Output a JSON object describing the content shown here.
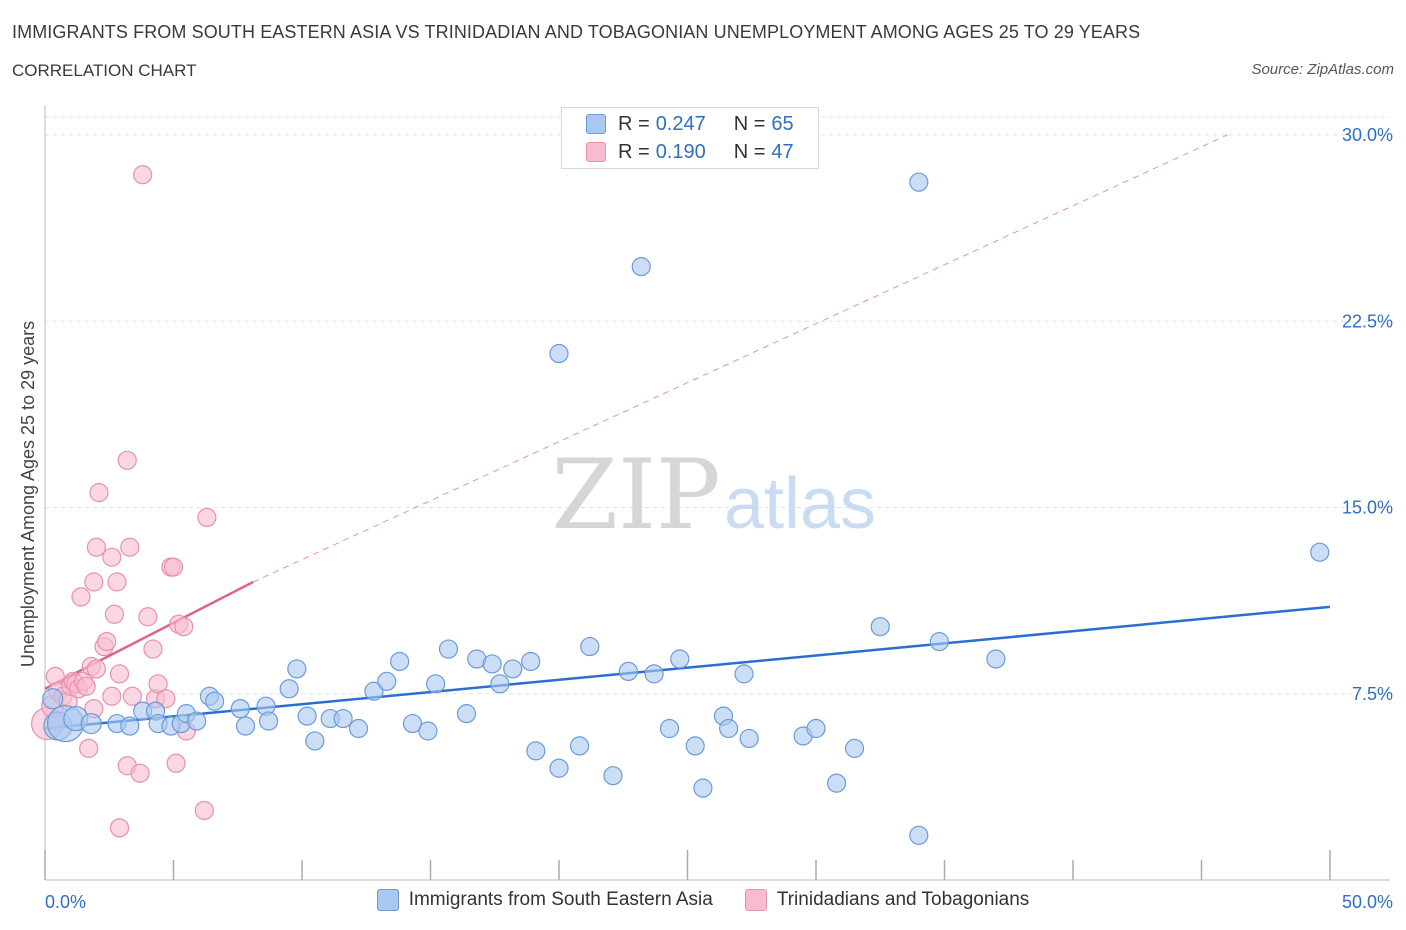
{
  "header": {
    "title": "IMMIGRANTS FROM SOUTH EASTERN ASIA VS TRINIDADIAN AND TOBAGONIAN UNEMPLOYMENT AMONG AGES 25 TO 29 YEARS",
    "subtitle": "CORRELATION CHART",
    "source": "Source: ZipAtlas.com"
  },
  "watermark": {
    "zip": "ZIP",
    "atlas": "atlas"
  },
  "legend_top": {
    "rows": [
      {
        "r_label": "R =",
        "r_value": "0.247",
        "n_label": "N =",
        "n_value": "65"
      },
      {
        "r_label": "R =",
        "r_value": "0.190",
        "n_label": "N =",
        "n_value": "47"
      }
    ]
  },
  "legend_bottom": {
    "items": [
      {
        "label": "Immigrants from South Eastern Asia"
      },
      {
        "label": "Trinidadians and Tobagonians"
      }
    ]
  },
  "colors": {
    "blue_fill": "#a8c8f0",
    "blue_stroke": "#6a9bd8",
    "blue_line": "#2a6fd0",
    "pink_fill": "#f8bcd0",
    "pink_stroke": "#e890b0",
    "pink_line": "#e0628e",
    "axis_label": "#2f6fc2",
    "grid": "#e2e2e2"
  },
  "chart_data": {
    "type": "scatter",
    "title": "IMMIGRANTS FROM SOUTH EASTERN ASIA VS TRINIDADIAN AND TOBAGONIAN UNEMPLOYMENT AMONG AGES 25 TO 29 YEARS",
    "xlabel": "",
    "ylabel": "Unemployment Among Ages 25 to 29 years",
    "xlim": [
      0,
      50
    ],
    "ylim": [
      0,
      30
    ],
    "x_tick_labels": [
      "0.0%",
      "50.0%"
    ],
    "y_ticks": [
      7.5,
      15.0,
      22.5,
      30.0
    ],
    "y_tick_labels": [
      "7.5%",
      "15.0%",
      "22.5%",
      "30.0%"
    ],
    "grid": true,
    "legend_position": "top-center",
    "series": [
      {
        "name": "Immigrants from South Eastern Asia",
        "R": 0.247,
        "N": 65,
        "trend": {
          "x": [
            0,
            50
          ],
          "y": [
            6.1,
            11.0
          ],
          "style": "solid"
        },
        "points": [
          [
            0.3,
            7.3,
            10
          ],
          [
            0.5,
            6.2,
            14
          ],
          [
            0.8,
            6.3,
            18
          ],
          [
            1.2,
            6.5,
            12
          ],
          [
            1.8,
            6.3,
            10
          ],
          [
            2.8,
            6.3,
            9
          ],
          [
            3.3,
            6.2,
            9
          ],
          [
            3.8,
            6.8,
            9
          ],
          [
            4.3,
            6.8,
            9
          ],
          [
            4.4,
            6.3,
            9
          ],
          [
            4.9,
            6.2,
            9
          ],
          [
            5.3,
            6.3,
            9
          ],
          [
            5.5,
            6.7,
            9
          ],
          [
            5.9,
            6.4,
            9
          ],
          [
            6.4,
            7.4,
            9
          ],
          [
            6.6,
            7.2,
            9
          ],
          [
            7.6,
            6.9,
            9
          ],
          [
            7.8,
            6.2,
            9
          ],
          [
            8.6,
            7.0,
            9
          ],
          [
            8.7,
            6.4,
            9
          ],
          [
            9.5,
            7.7,
            9
          ],
          [
            9.8,
            8.5,
            9
          ],
          [
            10.2,
            6.6,
            9
          ],
          [
            10.5,
            5.6,
            9
          ],
          [
            11.1,
            6.5,
            9
          ],
          [
            11.6,
            6.5,
            9
          ],
          [
            12.2,
            6.1,
            9
          ],
          [
            12.8,
            7.6,
            9
          ],
          [
            13.3,
            8.0,
            9
          ],
          [
            13.8,
            8.8,
            9
          ],
          [
            14.3,
            6.3,
            9
          ],
          [
            14.9,
            6.0,
            9
          ],
          [
            15.2,
            7.9,
            9
          ],
          [
            15.7,
            9.3,
            9
          ],
          [
            16.4,
            6.7,
            9
          ],
          [
            16.8,
            8.9,
            9
          ],
          [
            17.4,
            8.7,
            9
          ],
          [
            17.7,
            7.9,
            9
          ],
          [
            18.2,
            8.5,
            9
          ],
          [
            18.9,
            8.8,
            9
          ],
          [
            19.1,
            5.2,
            9
          ],
          [
            20.0,
            4.5,
            9
          ],
          [
            20.0,
            21.2,
            9
          ],
          [
            20.8,
            5.4,
            9
          ],
          [
            21.2,
            9.4,
            9
          ],
          [
            22.1,
            4.2,
            9
          ],
          [
            22.7,
            8.4,
            9
          ],
          [
            23.2,
            24.7,
            9
          ],
          [
            23.7,
            8.3,
            9
          ],
          [
            24.3,
            6.1,
            9
          ],
          [
            24.7,
            8.9,
            9
          ],
          [
            25.3,
            5.4,
            9
          ],
          [
            25.6,
            3.7,
            9
          ],
          [
            26.4,
            6.6,
            9
          ],
          [
            26.6,
            6.1,
            9
          ],
          [
            27.2,
            8.3,
            9
          ],
          [
            27.4,
            5.7,
            9
          ],
          [
            29.5,
            5.8,
            9
          ],
          [
            30.0,
            6.1,
            9
          ],
          [
            30.8,
            3.9,
            9
          ],
          [
            31.5,
            5.3,
            9
          ],
          [
            32.5,
            10.2,
            9
          ],
          [
            34.0,
            1.8,
            9
          ],
          [
            34.0,
            28.1,
            9
          ],
          [
            34.8,
            9.6,
            9
          ],
          [
            37.0,
            8.9,
            9
          ],
          [
            49.6,
            13.2,
            9
          ]
        ]
      },
      {
        "name": "Trinidadians and Tobagonians",
        "R": 0.19,
        "N": 47,
        "trend": {
          "x": [
            0,
            8.1
          ],
          "y": [
            7.7,
            12.0
          ],
          "style": "solid",
          "extension": {
            "x": [
              8.1,
              46.0
            ],
            "y": [
              12.0,
              30.0
            ],
            "style": "dashed"
          }
        },
        "points": [
          [
            0.1,
            6.3,
            16
          ],
          [
            0.3,
            7.0,
            11
          ],
          [
            0.4,
            8.2,
            9
          ],
          [
            0.5,
            7.6,
            9
          ],
          [
            0.7,
            7.4,
            9
          ],
          [
            0.9,
            7.2,
            9
          ],
          [
            1.0,
            7.8,
            9
          ],
          [
            1.1,
            8.0,
            9
          ],
          [
            1.2,
            7.9,
            9
          ],
          [
            1.3,
            7.7,
            9
          ],
          [
            1.5,
            8.0,
            9
          ],
          [
            1.6,
            7.8,
            9
          ],
          [
            1.8,
            8.6,
            9
          ],
          [
            1.4,
            11.4,
            9
          ],
          [
            1.7,
            5.3,
            9
          ],
          [
            1.9,
            6.9,
            9
          ],
          [
            1.9,
            12.0,
            9
          ],
          [
            2.0,
            8.5,
            9
          ],
          [
            2.1,
            15.6,
            9
          ],
          [
            2.0,
            13.4,
            9
          ],
          [
            2.3,
            9.4,
            9
          ],
          [
            2.4,
            9.6,
            9
          ],
          [
            2.6,
            7.4,
            9
          ],
          [
            2.6,
            13.0,
            9
          ],
          [
            2.7,
            10.7,
            9
          ],
          [
            2.8,
            12.0,
            9
          ],
          [
            2.9,
            8.3,
            9
          ],
          [
            2.9,
            2.1,
            9
          ],
          [
            3.2,
            4.6,
            9
          ],
          [
            3.2,
            16.9,
            9
          ],
          [
            3.3,
            13.4,
            9
          ],
          [
            3.4,
            7.4,
            9
          ],
          [
            3.7,
            4.3,
            9
          ],
          [
            3.8,
            28.4,
            9
          ],
          [
            4.0,
            10.6,
            9
          ],
          [
            4.2,
            9.3,
            9
          ],
          [
            4.3,
            7.3,
            9
          ],
          [
            4.4,
            7.9,
            9
          ],
          [
            4.7,
            7.3,
            9
          ],
          [
            4.9,
            12.6,
            9
          ],
          [
            5.0,
            12.6,
            9
          ],
          [
            5.1,
            4.7,
            9
          ],
          [
            5.2,
            10.3,
            9
          ],
          [
            5.4,
            10.2,
            9
          ],
          [
            6.2,
            2.8,
            9
          ],
          [
            6.3,
            14.6,
            9
          ],
          [
            5.5,
            6.0,
            9
          ]
        ]
      }
    ]
  }
}
